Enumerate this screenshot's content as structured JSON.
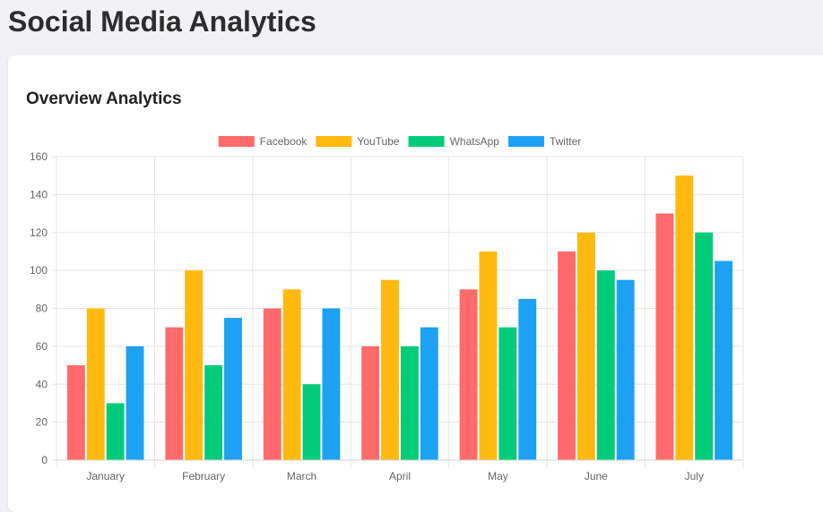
{
  "page": {
    "title": "Social Media Analytics"
  },
  "card": {
    "title": "Overview Analytics"
  },
  "colors": {
    "background": "#f0f2f5",
    "card": "#ffffff",
    "grid": "#e6e6e6",
    "text": "#666666"
  },
  "chart_data": {
    "type": "bar",
    "categories": [
      "January",
      "February",
      "March",
      "April",
      "May",
      "June",
      "July"
    ],
    "series": [
      {
        "name": "Facebook",
        "color": "#ff6b6b",
        "values": [
          50,
          70,
          80,
          60,
          90,
          110,
          130
        ]
      },
      {
        "name": "YouTube",
        "color": "#ffb90f",
        "values": [
          80,
          100,
          90,
          95,
          110,
          120,
          150
        ]
      },
      {
        "name": "WhatsApp",
        "color": "#00cc7a",
        "values": [
          30,
          50,
          40,
          60,
          70,
          100,
          120
        ]
      },
      {
        "name": "Twitter",
        "color": "#1da1f2",
        "values": [
          60,
          75,
          80,
          70,
          85,
          95,
          105
        ]
      }
    ],
    "yticks": [
      0,
      20,
      40,
      60,
      80,
      100,
      120,
      140,
      160
    ],
    "ylim": [
      0,
      160
    ],
    "grid": true,
    "legend_position": "top-center",
    "title": "",
    "xlabel": "",
    "ylabel": ""
  }
}
